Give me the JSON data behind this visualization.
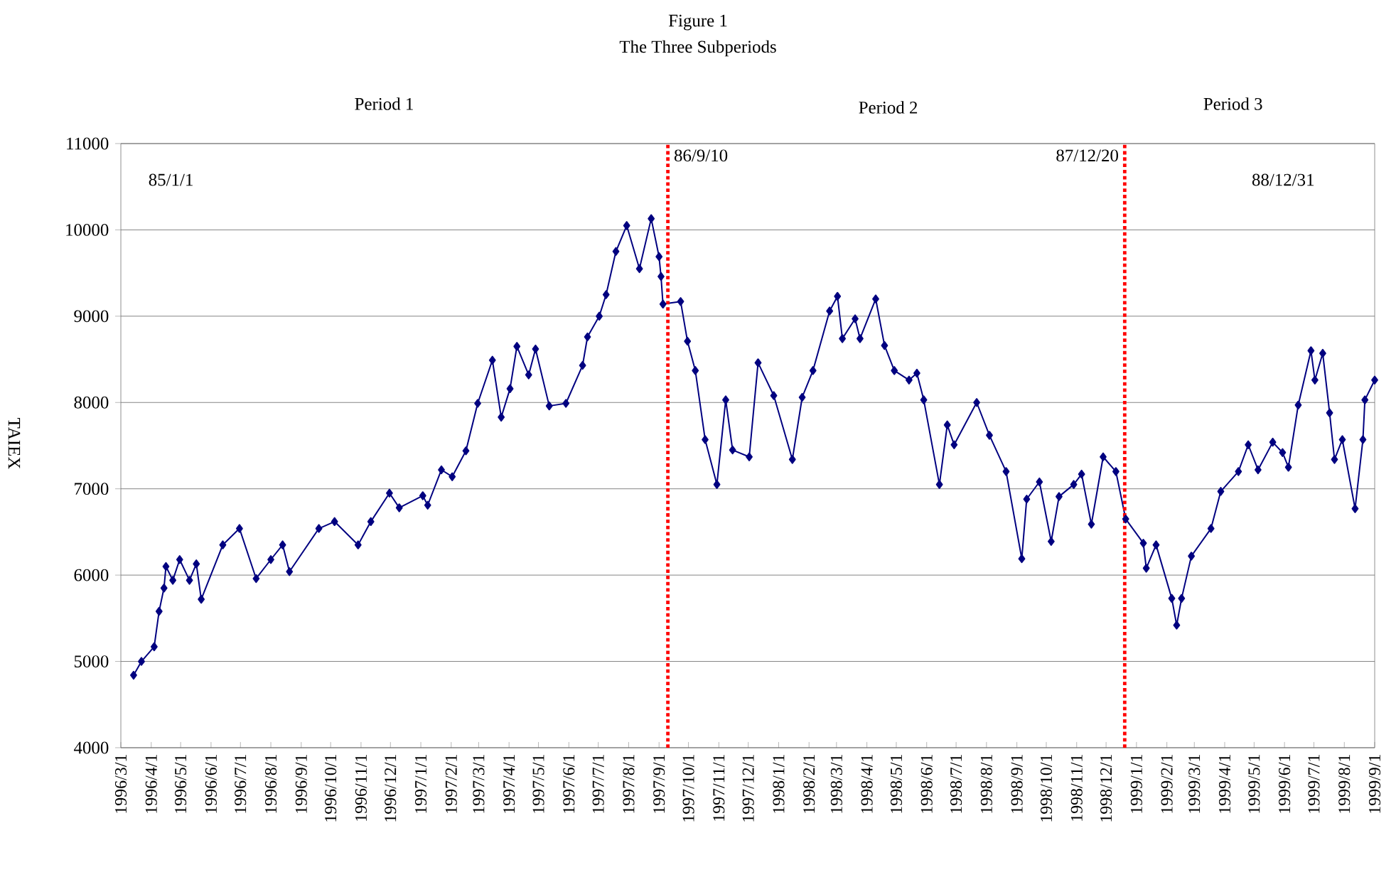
{
  "chart_data": {
    "type": "line",
    "title": "Figure 1",
    "subtitle": "The Three Subperiods",
    "ylabel": "TAIEX",
    "color": "#000080",
    "marker": "diamond",
    "line_style": "solid",
    "grid": "y",
    "xlim": [
      "1996-03-01",
      "1999-09-01"
    ],
    "ylim": [
      4000,
      11000
    ],
    "yticks": [
      4000,
      5000,
      6000,
      7000,
      8000,
      9000,
      10000,
      11000
    ],
    "xticks": [
      {
        "value": "1996-03-01",
        "label": "1996/3/1"
      },
      {
        "value": "1996-04-01",
        "label": "1996/4/1"
      },
      {
        "value": "1996-05-01",
        "label": "1996/5/1"
      },
      {
        "value": "1996-06-01",
        "label": "1996/6/1"
      },
      {
        "value": "1996-07-01",
        "label": "1996/7/1"
      },
      {
        "value": "1996-08-01",
        "label": "1996/8/1"
      },
      {
        "value": "1996-09-01",
        "label": "1996/9/1"
      },
      {
        "value": "1996-10-01",
        "label": "1996/10/1"
      },
      {
        "value": "1996-11-01",
        "label": "1996/11/1"
      },
      {
        "value": "1996-12-01",
        "label": "1996/12/1"
      },
      {
        "value": "1997-01-01",
        "label": "1997/1/1"
      },
      {
        "value": "1997-02-01",
        "label": "1997/2/1"
      },
      {
        "value": "1997-03-01",
        "label": "1997/3/1"
      },
      {
        "value": "1997-04-01",
        "label": "1997/4/1"
      },
      {
        "value": "1997-05-01",
        "label": "1997/5/1"
      },
      {
        "value": "1997-06-01",
        "label": "1997/6/1"
      },
      {
        "value": "1997-07-01",
        "label": "1997/7/1"
      },
      {
        "value": "1997-08-01",
        "label": "1997/8/1"
      },
      {
        "value": "1997-09-01",
        "label": "1997/9/1"
      },
      {
        "value": "1997-10-01",
        "label": "1997/10/1"
      },
      {
        "value": "1997-11-01",
        "label": "1997/11/1"
      },
      {
        "value": "1997-12-01",
        "label": "1997/12/1"
      },
      {
        "value": "1998-01-01",
        "label": "1998/1/1"
      },
      {
        "value": "1998-02-01",
        "label": "1998/2/1"
      },
      {
        "value": "1998-03-01",
        "label": "1998/3/1"
      },
      {
        "value": "1998-04-01",
        "label": "1998/4/1"
      },
      {
        "value": "1998-05-01",
        "label": "1998/5/1"
      },
      {
        "value": "1998-06-01",
        "label": "1998/6/1"
      },
      {
        "value": "1998-07-01",
        "label": "1998/7/1"
      },
      {
        "value": "1998-08-01",
        "label": "1998/8/1"
      },
      {
        "value": "1998-09-01",
        "label": "1998/9/1"
      },
      {
        "value": "1998-10-01",
        "label": "1998/10/1"
      },
      {
        "value": "1998-11-01",
        "label": "1998/11/1"
      },
      {
        "value": "1998-12-01",
        "label": "1998/12/1"
      },
      {
        "value": "1999-01-01",
        "label": "1999/1/1"
      },
      {
        "value": "1999-02-01",
        "label": "1999/2/1"
      },
      {
        "value": "1999-03-01",
        "label": "1999/3/1"
      },
      {
        "value": "1999-04-01",
        "label": "1999/4/1"
      },
      {
        "value": "1999-05-01",
        "label": "1999/5/1"
      },
      {
        "value": "1999-06-01",
        "label": "1999/6/1"
      },
      {
        "value": "1999-07-01",
        "label": "1999/7/1"
      },
      {
        "value": "1999-08-01",
        "label": "1999/8/1"
      },
      {
        "value": "1999-09-01",
        "label": "1999/9/1"
      }
    ],
    "x": [
      "1996-03-14",
      "1996-03-22",
      "1996-04-04",
      "1996-04-09",
      "1996-04-14",
      "1996-04-16",
      "1996-04-23",
      "1996-04-30",
      "1996-05-10",
      "1996-05-17",
      "1996-05-22",
      "1996-06-13",
      "1996-06-30",
      "1996-07-17",
      "1996-08-01",
      "1996-08-13",
      "1996-08-20",
      "1996-09-19",
      "1996-10-05",
      "1996-10-29",
      "1996-11-11",
      "1996-11-30",
      "1996-12-10",
      "1997-01-03",
      "1997-01-08",
      "1997-01-22",
      "1997-02-02",
      "1997-02-16",
      "1997-02-28",
      "1997-03-15",
      "1997-03-24",
      "1997-04-02",
      "1997-04-09",
      "1997-04-21",
      "1997-04-28",
      "1997-05-12",
      "1997-05-29",
      "1997-06-15",
      "1997-06-20",
      "1997-07-02",
      "1997-07-09",
      "1997-07-19",
      "1997-07-30",
      "1997-08-12",
      "1997-08-24",
      "1997-09-01",
      "1997-09-03",
      "1997-09-05",
      "1997-09-23",
      "1997-09-30",
      "1997-10-08",
      "1997-10-18",
      "1997-10-30",
      "1997-11-08",
      "1997-11-15",
      "1997-12-02",
      "1997-12-11",
      "1997-12-27",
      "1998-01-15",
      "1998-01-25",
      "1998-02-05",
      "1998-02-22",
      "1998-03-02",
      "1998-03-07",
      "1998-03-20",
      "1998-03-25",
      "1998-04-10",
      "1998-04-19",
      "1998-04-29",
      "1998-05-14",
      "1998-05-22",
      "1998-05-29",
      "1998-06-14",
      "1998-06-22",
      "1998-06-29",
      "1998-07-22",
      "1998-08-04",
      "1998-08-21",
      "1998-09-06",
      "1998-09-11",
      "1998-09-24",
      "1998-10-06",
      "1998-10-14",
      "1998-10-29",
      "1998-11-06",
      "1998-11-16",
      "1998-11-28",
      "1998-12-11",
      "1998-12-21",
      "1999-01-08",
      "1999-01-11",
      "1999-01-21",
      "1999-02-06",
      "1999-02-11",
      "1999-02-16",
      "1999-02-26",
      "1999-03-18",
      "1999-03-28",
      "1999-04-15",
      "1999-04-25",
      "1999-05-05",
      "1999-05-20",
      "1999-05-30",
      "1999-06-05",
      "1999-06-15",
      "1999-06-28",
      "1999-07-02",
      "1999-07-10",
      "1999-07-17",
      "1999-07-22",
      "1999-07-30",
      "1999-08-12",
      "1999-08-20",
      "1999-08-22",
      "1999-09-01"
    ],
    "values": [
      4840,
      5000,
      5170,
      5580,
      5850,
      6100,
      5940,
      6180,
      5940,
      6130,
      5720,
      6350,
      6540,
      5960,
      6180,
      6350,
      6040,
      6540,
      6620,
      6350,
      6620,
      6950,
      6780,
      6920,
      6810,
      7220,
      7140,
      7440,
      7990,
      8490,
      7830,
      8160,
      8650,
      8320,
      8620,
      7960,
      7990,
      8430,
      8760,
      9000,
      9250,
      9750,
      10050,
      9550,
      10130,
      9690,
      9460,
      9140,
      9170,
      8710,
      8370,
      7570,
      7050,
      8030,
      7450,
      7370,
      8460,
      8080,
      7340,
      8060,
      8370,
      9060,
      9230,
      8740,
      8970,
      8740,
      9200,
      8660,
      8370,
      8260,
      8340,
      8030,
      7050,
      7740,
      7510,
      8000,
      7620,
      7200,
      6190,
      6880,
      7080,
      6390,
      6910,
      7050,
      7170,
      6590,
      7370,
      7200,
      6650,
      6370,
      6080,
      6350,
      5730,
      5420,
      5730,
      6220,
      6540,
      6970,
      7200,
      7510,
      7220,
      7540,
      7420,
      7250,
      7970,
      8600,
      8260,
      8570,
      7880,
      7340,
      7570,
      6770,
      7570,
      8030,
      8260
    ],
    "ref_lines": [
      {
        "axis": "x",
        "value": "1997-09-10",
        "label": "86/9/10",
        "color": "#ff0000",
        "line_style": "dotted"
      },
      {
        "axis": "x",
        "value": "1998-12-20",
        "label": "87/12/20",
        "color": "#ff0000",
        "line_style": "dotted"
      }
    ],
    "annotations": [
      "Period 1",
      "Period 2",
      "Period 3",
      "85/1/1",
      "88/12/31"
    ]
  }
}
